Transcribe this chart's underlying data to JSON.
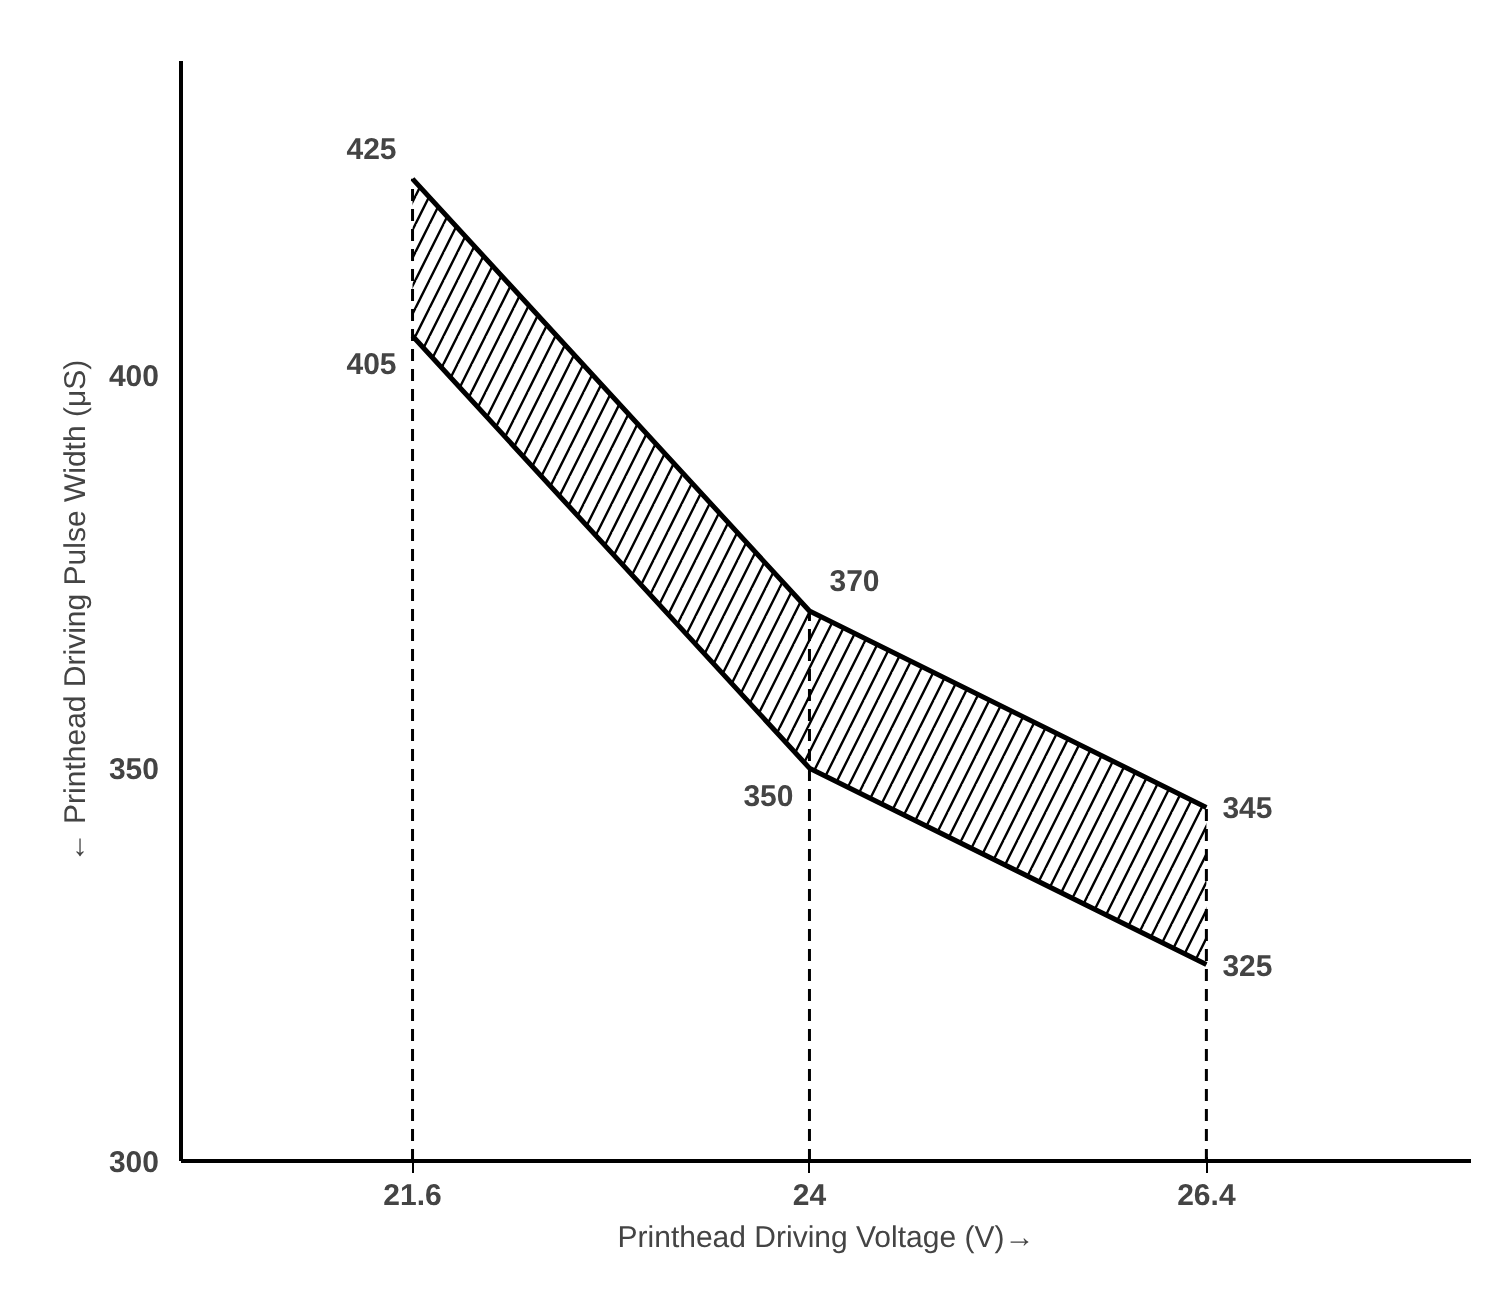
{
  "chart_data": {
    "type": "line",
    "xlabel": "Printhead Driving Voltage (V)→",
    "ylabel": "← Printhead Driving Pulse Width (μS)",
    "x": [
      21.6,
      24,
      26.4
    ],
    "series": [
      {
        "color": "#000000",
        "values": [
          405,
          350,
          325
        ]
      },
      {
        "color": "#000000",
        "values": [
          425,
          370,
          345
        ],
        "lower": [
          405,
          350,
          325
        ],
        "upper": [
          425,
          370,
          345
        ]
      }
    ],
    "data_labels": true,
    "xlim": [
      20.2,
      28
    ],
    "ylim": [
      300,
      440
    ],
    "xticks": [
      21.6,
      24,
      26.4
    ],
    "yticks": [
      300,
      350,
      400
    ],
    "ref_lines": [
      {
        "axis": "x",
        "value": 21.6,
        "color": "#000000",
        "line_style": "dashed"
      },
      {
        "axis": "x",
        "value": 24,
        "color": "#000000",
        "line_style": "dashed"
      },
      {
        "axis": "x",
        "value": 26.4,
        "color": "#000000",
        "line_style": "dashed"
      }
    ],
    "grid": false,
    "marker": "none",
    "line_style": "solid"
  }
}
